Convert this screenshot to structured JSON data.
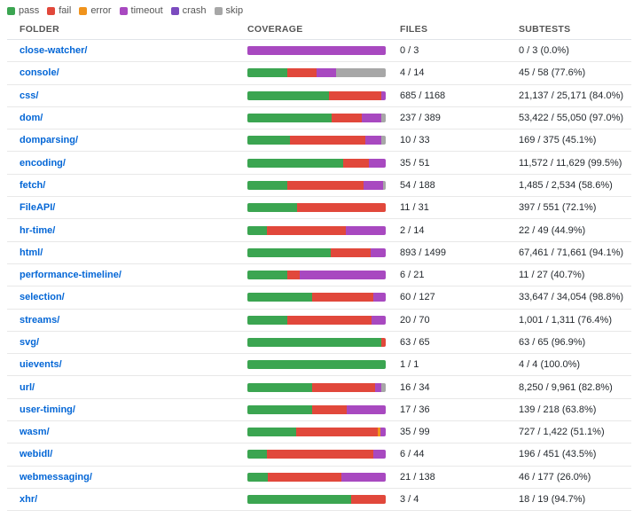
{
  "colors": {
    "pass": "#3ba551",
    "fail": "#e1483b",
    "error": "#f0931c",
    "timeout": "#a849c0",
    "crash": "#7b4bbf",
    "skip": "#a7a7a7"
  },
  "legend": [
    {
      "key": "pass",
      "label": "pass"
    },
    {
      "key": "fail",
      "label": "fail"
    },
    {
      "key": "error",
      "label": "error"
    },
    {
      "key": "timeout",
      "label": "timeout"
    },
    {
      "key": "crash",
      "label": "crash"
    },
    {
      "key": "skip",
      "label": "skip"
    }
  ],
  "headers": {
    "folder": "FOLDER",
    "coverage": "COVERAGE",
    "files": "FILES",
    "subtests": "SUBTESTS"
  },
  "rows": [
    {
      "folder": "close-watcher/",
      "files": "0 / 3",
      "subtests": "0 / 3 (0.0%)",
      "coverage": {
        "pass": 0,
        "fail": 0,
        "error": 0,
        "timeout": 100,
        "crash": 0,
        "skip": 0
      }
    },
    {
      "folder": "console/",
      "files": "4 / 14",
      "subtests": "45 / 58 (77.6%)",
      "coverage": {
        "pass": 29,
        "fail": 21,
        "error": 0,
        "timeout": 14,
        "crash": 0,
        "skip": 36
      }
    },
    {
      "folder": "css/",
      "files": "685 / 1168",
      "subtests": "21,137 / 25,171 (84.0%)",
      "coverage": {
        "pass": 59,
        "fail": 38,
        "error": 0,
        "timeout": 3,
        "crash": 0,
        "skip": 0
      }
    },
    {
      "folder": "dom/",
      "files": "237 / 389",
      "subtests": "53,422 / 55,050 (97.0%)",
      "coverage": {
        "pass": 61,
        "fail": 22,
        "error": 0,
        "timeout": 14,
        "crash": 0,
        "skip": 3
      }
    },
    {
      "folder": "domparsing/",
      "files": "10 / 33",
      "subtests": "169 / 375 (45.1%)",
      "coverage": {
        "pass": 31,
        "fail": 54,
        "error": 0,
        "timeout": 12,
        "crash": 0,
        "skip": 3
      }
    },
    {
      "folder": "encoding/",
      "files": "35 / 51",
      "subtests": "11,572 / 11,629 (99.5%)",
      "coverage": {
        "pass": 69,
        "fail": 19,
        "error": 0,
        "timeout": 12,
        "crash": 0,
        "skip": 0
      }
    },
    {
      "folder": "fetch/",
      "files": "54 / 188",
      "subtests": "1,485 / 2,534 (58.6%)",
      "coverage": {
        "pass": 29,
        "fail": 55,
        "error": 0,
        "timeout": 14,
        "crash": 0,
        "skip": 2
      }
    },
    {
      "folder": "FileAPI/",
      "files": "11 / 31",
      "subtests": "397 / 551 (72.1%)",
      "coverage": {
        "pass": 36,
        "fail": 64,
        "error": 0,
        "timeout": 0,
        "crash": 0,
        "skip": 0
      }
    },
    {
      "folder": "hr-time/",
      "files": "2 / 14",
      "subtests": "22 / 49 (44.9%)",
      "coverage": {
        "pass": 14,
        "fail": 57,
        "error": 0,
        "timeout": 29,
        "crash": 0,
        "skip": 0
      }
    },
    {
      "folder": "html/",
      "files": "893 / 1499",
      "subtests": "67,461 / 71,661 (94.1%)",
      "coverage": {
        "pass": 60,
        "fail": 29,
        "error": 0,
        "timeout": 11,
        "crash": 0,
        "skip": 0
      }
    },
    {
      "folder": "performance-timeline/",
      "files": "6 / 21",
      "subtests": "11 / 27 (40.7%)",
      "coverage": {
        "pass": 29,
        "fail": 9,
        "error": 0,
        "timeout": 62,
        "crash": 0,
        "skip": 0
      }
    },
    {
      "folder": "selection/",
      "files": "60 / 127",
      "subtests": "33,647 / 34,054 (98.8%)",
      "coverage": {
        "pass": 47,
        "fail": 44,
        "error": 0,
        "timeout": 9,
        "crash": 0,
        "skip": 0
      }
    },
    {
      "folder": "streams/",
      "files": "20 / 70",
      "subtests": "1,001 / 1,311 (76.4%)",
      "coverage": {
        "pass": 29,
        "fail": 61,
        "error": 0,
        "timeout": 10,
        "crash": 0,
        "skip": 0
      }
    },
    {
      "folder": "svg/",
      "files": "63 / 65",
      "subtests": "63 / 65 (96.9%)",
      "coverage": {
        "pass": 97,
        "fail": 3,
        "error": 0,
        "timeout": 0,
        "crash": 0,
        "skip": 0
      }
    },
    {
      "folder": "uievents/",
      "files": "1 / 1",
      "subtests": "4 / 4 (100.0%)",
      "coverage": {
        "pass": 100,
        "fail": 0,
        "error": 0,
        "timeout": 0,
        "crash": 0,
        "skip": 0
      }
    },
    {
      "folder": "url/",
      "files": "16 / 34",
      "subtests": "8,250 / 9,961 (82.8%)",
      "coverage": {
        "pass": 47,
        "fail": 45,
        "error": 0,
        "timeout": 5,
        "crash": 0,
        "skip": 3
      }
    },
    {
      "folder": "user-timing/",
      "files": "17 / 36",
      "subtests": "139 / 218 (63.8%)",
      "coverage": {
        "pass": 47,
        "fail": 25,
        "error": 0,
        "timeout": 28,
        "crash": 0,
        "skip": 0
      }
    },
    {
      "folder": "wasm/",
      "files": "35 / 99",
      "subtests": "727 / 1,422 (51.1%)",
      "coverage": {
        "pass": 35,
        "fail": 59,
        "error": 2,
        "timeout": 4,
        "crash": 0,
        "skip": 0
      }
    },
    {
      "folder": "webidl/",
      "files": "6 / 44",
      "subtests": "196 / 451 (43.5%)",
      "coverage": {
        "pass": 14,
        "fail": 77,
        "error": 0,
        "timeout": 9,
        "crash": 0,
        "skip": 0
      }
    },
    {
      "folder": "webmessaging/",
      "files": "21 / 138",
      "subtests": "46 / 177 (26.0%)",
      "coverage": {
        "pass": 15,
        "fail": 53,
        "error": 0,
        "timeout": 32,
        "crash": 0,
        "skip": 0
      }
    },
    {
      "folder": "xhr/",
      "files": "3 / 4",
      "subtests": "18 / 19 (94.7%)",
      "coverage": {
        "pass": 75,
        "fail": 25,
        "error": 0,
        "timeout": 0,
        "crash": 0,
        "skip": 0
      }
    }
  ]
}
